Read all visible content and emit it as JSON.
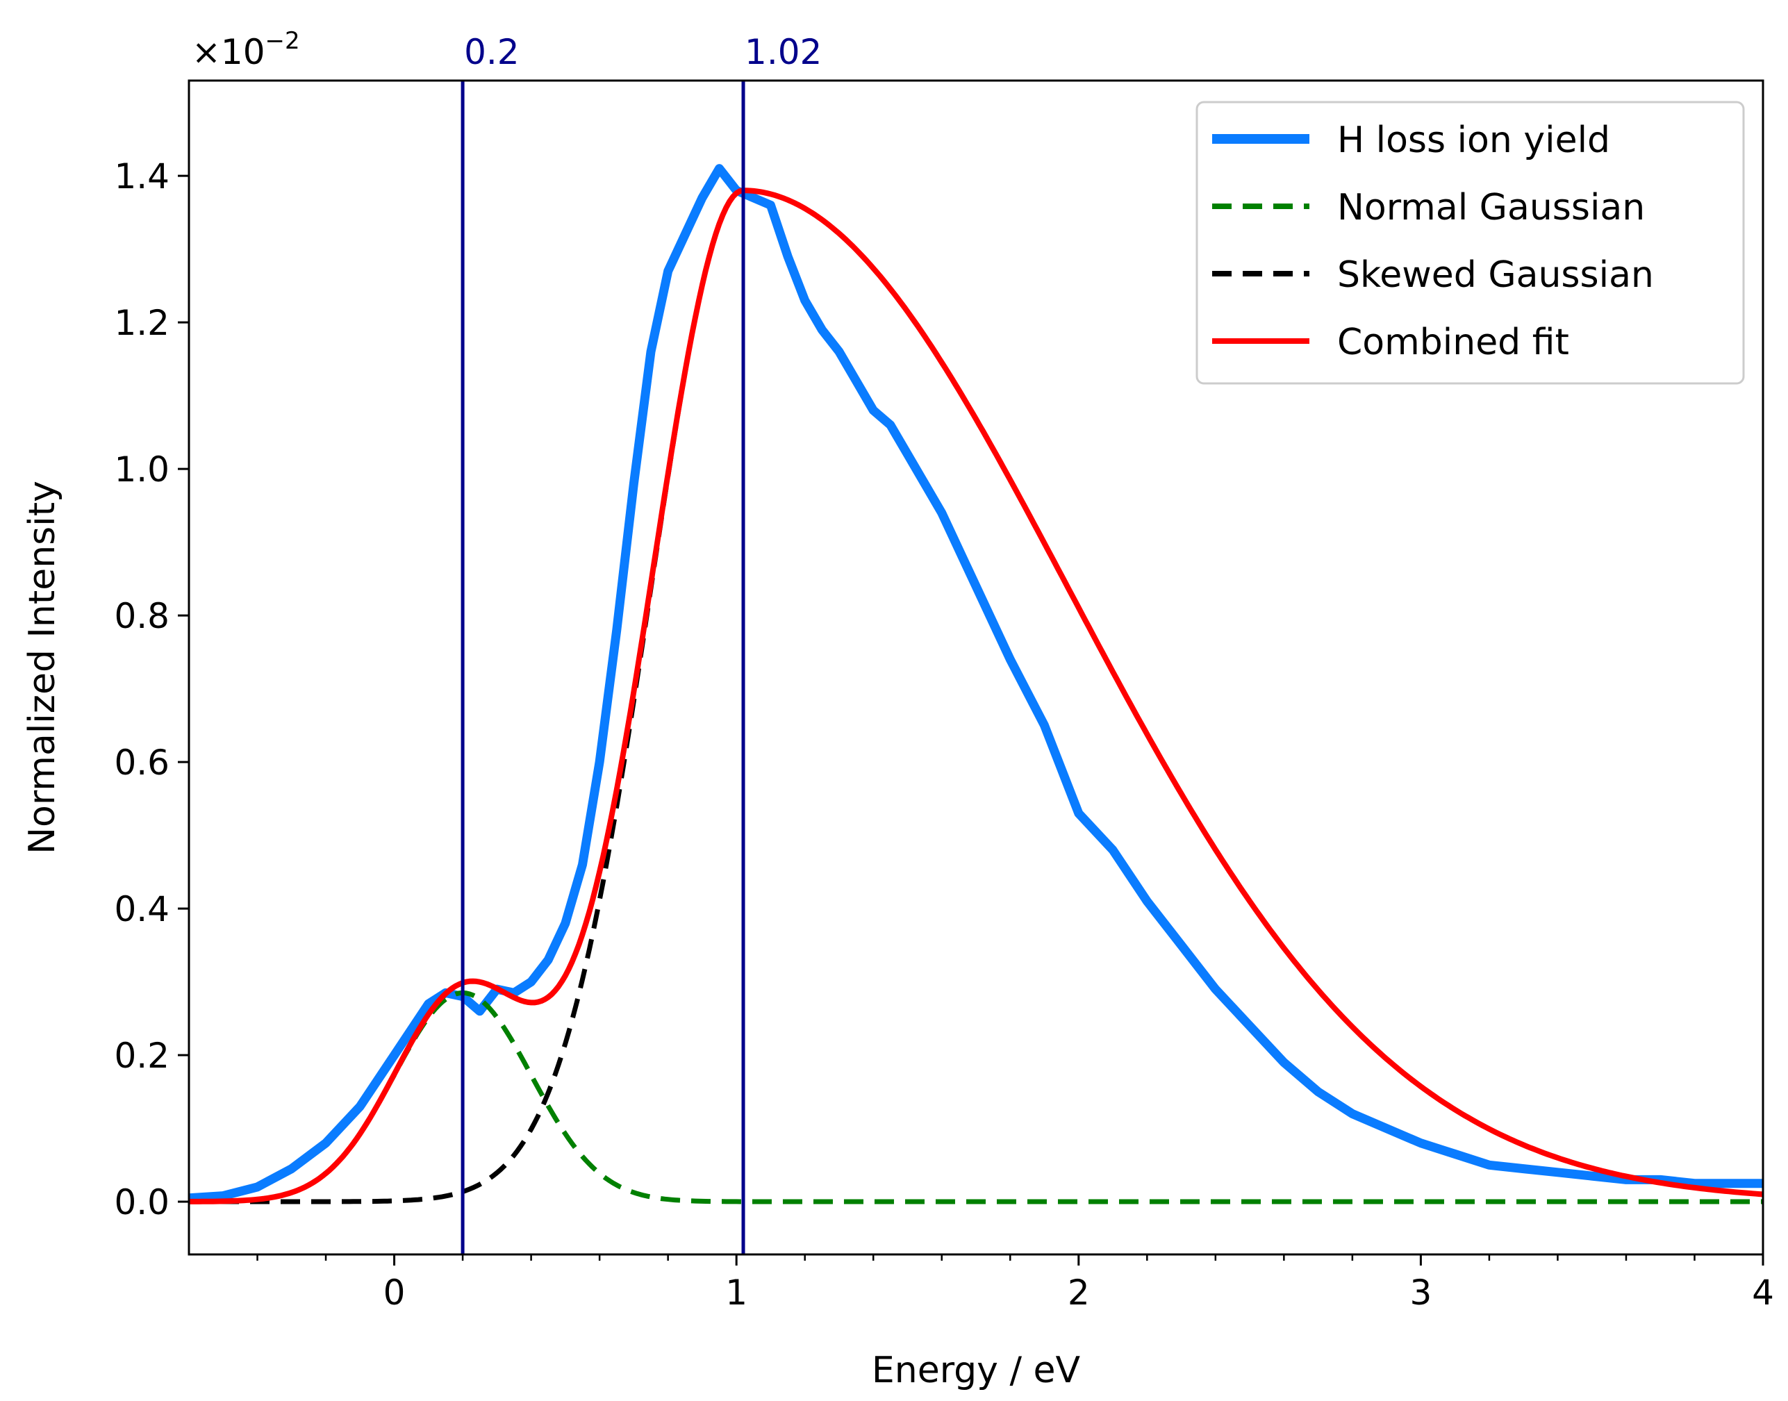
{
  "chart_data": {
    "type": "line",
    "title": "",
    "xlabel": "Energy / eV",
    "ylabel": "Normalized Intensity",
    "xlim": [
      -0.6,
      4.0
    ],
    "ylim": [
      -0.072,
      1.53
    ],
    "y_scale_label": "×10",
    "y_scale_exponent": "−2",
    "x_ticks": [
      {
        "value": 0,
        "label": "0"
      },
      {
        "value": 1,
        "label": "1"
      },
      {
        "value": 2,
        "label": "2"
      },
      {
        "value": 3,
        "label": "3"
      },
      {
        "value": 4,
        "label": "4"
      }
    ],
    "y_ticks": [
      {
        "value": 0.0,
        "label": "0.0"
      },
      {
        "value": 0.2,
        "label": "0.2"
      },
      {
        "value": 0.4,
        "label": "0.4"
      },
      {
        "value": 0.6,
        "label": "0.6"
      },
      {
        "value": 0.8,
        "label": "0.8"
      },
      {
        "value": 1.0,
        "label": "1.0"
      },
      {
        "value": 1.2,
        "label": "1.2"
      },
      {
        "value": 1.4,
        "label": "1.4"
      }
    ],
    "x_minor_step": 0.2,
    "vertical_lines": [
      {
        "x": 0.2,
        "label": "0.2",
        "color": "#00008b"
      },
      {
        "x": 1.02,
        "label": "1.02",
        "color": "#00008b"
      }
    ],
    "legend": {
      "location": "top-right",
      "entries": [
        {
          "label": "H loss ion yield",
          "series": "yield"
        },
        {
          "label": "Normal Gaussian",
          "series": "normal"
        },
        {
          "label": "Skewed Gaussian",
          "series": "skewed"
        },
        {
          "label": "Combined fit",
          "series": "combined"
        }
      ]
    },
    "series": [
      {
        "id": "yield",
        "name": "H loss ion yield",
        "color": "#0a7cff",
        "style": "solid",
        "x": [
          -0.6,
          -0.5,
          -0.4,
          -0.3,
          -0.2,
          -0.1,
          0.0,
          0.1,
          0.15,
          0.2,
          0.25,
          0.3,
          0.35,
          0.4,
          0.45,
          0.5,
          0.55,
          0.6,
          0.65,
          0.7,
          0.75,
          0.8,
          0.85,
          0.9,
          0.95,
          1.0,
          1.05,
          1.1,
          1.15,
          1.2,
          1.25,
          1.3,
          1.35,
          1.4,
          1.45,
          1.5,
          1.6,
          1.7,
          1.8,
          1.9,
          2.0,
          2.1,
          2.2,
          2.3,
          2.4,
          2.5,
          2.6,
          2.7,
          2.8,
          2.9,
          3.0,
          3.1,
          3.2,
          3.3,
          3.4,
          3.5,
          3.6,
          3.7,
          3.8,
          3.9,
          4.0
        ],
        "values": [
          0.005,
          0.008,
          0.02,
          0.045,
          0.08,
          0.13,
          0.2,
          0.27,
          0.285,
          0.28,
          0.26,
          0.29,
          0.285,
          0.3,
          0.33,
          0.38,
          0.46,
          0.6,
          0.78,
          0.98,
          1.16,
          1.27,
          1.32,
          1.37,
          1.41,
          1.38,
          1.37,
          1.36,
          1.29,
          1.23,
          1.19,
          1.16,
          1.12,
          1.08,
          1.06,
          1.02,
          0.94,
          0.84,
          0.74,
          0.65,
          0.53,
          0.48,
          0.41,
          0.35,
          0.29,
          0.24,
          0.19,
          0.15,
          0.12,
          0.1,
          0.08,
          0.065,
          0.05,
          0.045,
          0.04,
          0.035,
          0.03,
          0.03,
          0.025,
          0.025,
          0.025
        ]
      },
      {
        "id": "normal",
        "name": "Normal Gaussian",
        "color": "#008000",
        "style": "dashed",
        "model": {
          "kind": "gaussian",
          "amplitude": 0.285,
          "center": 0.2,
          "sigma": 0.2
        }
      },
      {
        "id": "skewed",
        "name": "Skewed Gaussian",
        "color": "#000000",
        "style": "dashed",
        "model": {
          "kind": "skewed_gaussian",
          "amplitude": 1.38,
          "center": 1.02,
          "sigma_left": 0.27,
          "sigma_right": 0.95
        }
      },
      {
        "id": "combined",
        "name": "Combined fit",
        "color": "#ff0000",
        "style": "solid",
        "model": {
          "kind": "sum",
          "of": [
            "normal",
            "skewed"
          ]
        }
      }
    ]
  }
}
